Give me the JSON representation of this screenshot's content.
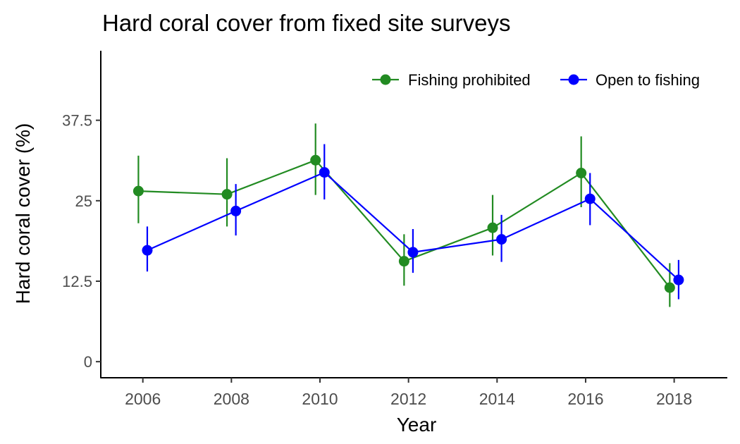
{
  "chart_data": {
    "type": "line",
    "title": "Hard coral cover from fixed site surveys",
    "xlabel": "Year",
    "ylabel": "Hard coral cover (%)",
    "x": [
      2006,
      2008,
      2010,
      2012,
      2014,
      2016,
      2018
    ],
    "x_ticks": [
      2006,
      2008,
      2010,
      2012,
      2014,
      2016,
      2018
    ],
    "x_tick_labels": [
      "2006",
      "2008",
      "2010",
      "2012",
      "2014",
      "2016",
      "2018"
    ],
    "xlim": [
      2005.05,
      2019.2
    ],
    "y_ticks": [
      0,
      12.5,
      25,
      37.5
    ],
    "y_tick_labels": [
      "0",
      "12.5",
      "25",
      "37.5"
    ],
    "ylim": [
      -2.5,
      48.3
    ],
    "grid": false,
    "legend_position": "top-right",
    "series": [
      {
        "name": "Fishing prohibited",
        "color": "#228B22",
        "dodge": -0.1,
        "values": [
          26.5,
          26.0,
          31.3,
          15.6,
          20.8,
          29.3,
          11.5
        ],
        "lower": [
          21.5,
          21.0,
          25.9,
          11.8,
          16.5,
          24.0,
          8.5
        ],
        "upper": [
          32.0,
          31.6,
          37.0,
          19.8,
          25.9,
          35.0,
          15.3
        ]
      },
      {
        "name": "Open to fishing",
        "color": "#0000FF",
        "dodge": 0.1,
        "values": [
          17.3,
          23.4,
          29.4,
          17.0,
          19.0,
          25.3,
          12.7
        ],
        "lower": [
          14.0,
          19.6,
          25.2,
          13.8,
          15.5,
          21.2,
          9.7
        ],
        "upper": [
          21.0,
          27.6,
          33.8,
          20.6,
          22.8,
          29.3,
          15.8
        ]
      }
    ]
  }
}
